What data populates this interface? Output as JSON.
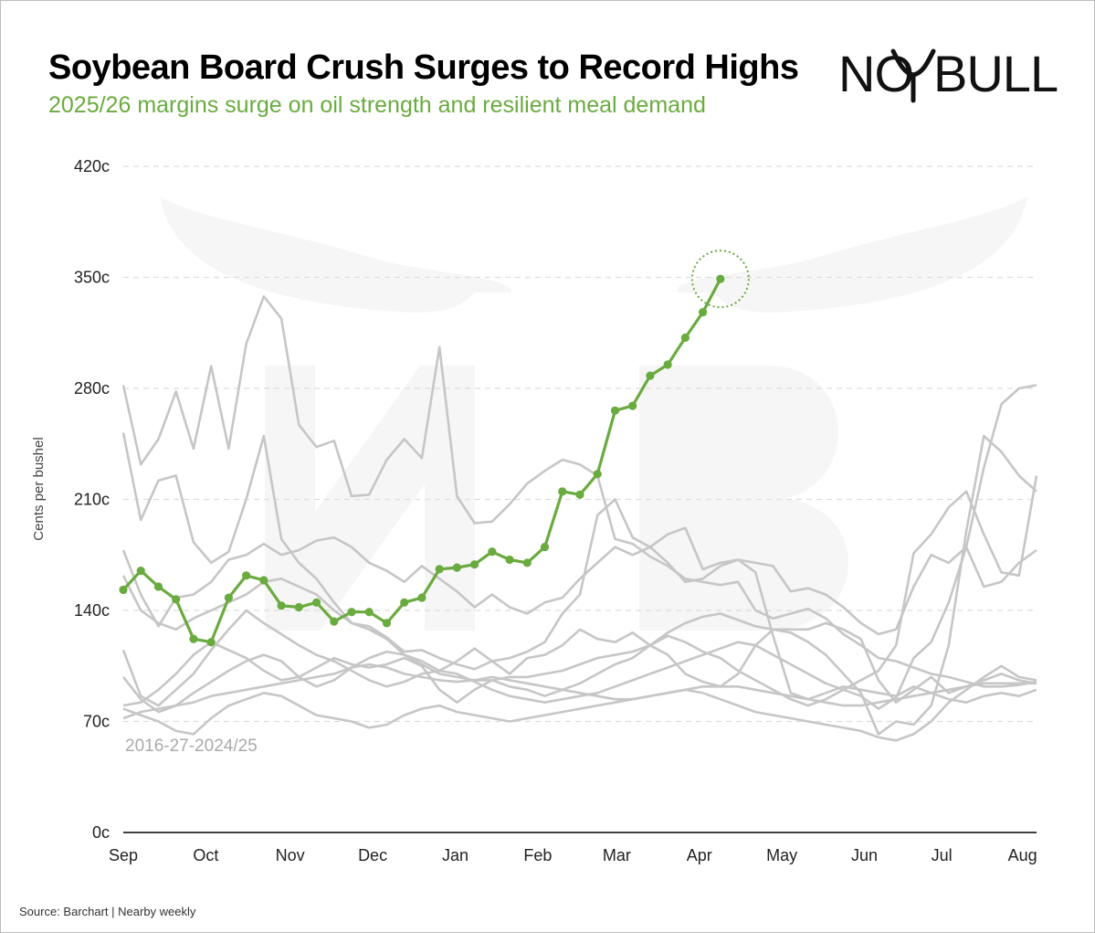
{
  "title": "Soybean Board Crush Surges to Record Highs",
  "subtitle": "2025/26 margins surge on oil strength and resilient meal demand",
  "source": "Source: Barchart | Nearby weekly",
  "logo": {
    "left": "NO",
    "right": "BULL"
  },
  "colors": {
    "highlight": "#6aab3f",
    "history": "#c6c6c6",
    "grid": "#dddddd",
    "axis": "#000000"
  },
  "chart_data": {
    "type": "line",
    "ylabel": "Cents per bushel",
    "ylim": [
      0,
      420
    ],
    "yticks": [
      0,
      70,
      140,
      210,
      280,
      350,
      420
    ],
    "ytick_labels": [
      "0c",
      "70c",
      "140c",
      "210c",
      "280c",
      "350c",
      "420c"
    ],
    "x_week_range": [
      0,
      52
    ],
    "xticks": [
      {
        "label": "Sep",
        "week": 0
      },
      {
        "label": "Oct",
        "week": 4.7
      },
      {
        "label": "Nov",
        "week": 9.5
      },
      {
        "label": "Dec",
        "week": 14.2
      },
      {
        "label": "Jan",
        "week": 18.9
      },
      {
        "label": "Feb",
        "week": 23.6
      },
      {
        "label": "Mar",
        "week": 28.1
      },
      {
        "label": "Apr",
        "week": 32.8
      },
      {
        "label": "May",
        "week": 37.5
      },
      {
        "label": "Jun",
        "week": 42.2
      },
      {
        "label": "Jul",
        "week": 46.6
      },
      {
        "label": "Aug",
        "week": 51.2
      }
    ],
    "grid": "horizontal dashed",
    "annotation": "2016-27-2024/25",
    "highlight_series": {
      "values": [
        153,
        165,
        155,
        147,
        122,
        120,
        148,
        162,
        159,
        143,
        142,
        145,
        133,
        139,
        139,
        132,
        145,
        148,
        166,
        167,
        169,
        177,
        172,
        170,
        180,
        215,
        213,
        226,
        266,
        269,
        288,
        295,
        312,
        328,
        349
      ],
      "marker_circle_on_last": true
    },
    "history_series": [
      {
        "values": [
          282,
          232,
          248,
          278,
          242,
          294,
          242,
          308,
          338,
          324,
          257,
          243,
          247,
          212,
          213,
          235,
          248,
          236,
          306,
          212,
          195,
          196,
          207,
          220,
          228,
          235,
          232,
          225,
          185,
          182,
          174,
          168,
          160,
          158,
          156,
          158,
          140,
          135,
          138,
          141,
          135,
          125,
          118,
          110,
          108,
          104,
          100,
          98,
          95,
          92,
          92,
          93,
          95
        ]
      },
      {
        "values": [
          252,
          197,
          222,
          225,
          183,
          170,
          177,
          210,
          250,
          185,
          170,
          160,
          145,
          132,
          130,
          123,
          114,
          115,
          110,
          106,
          103,
          108,
          110,
          114,
          120,
          138,
          150,
          200,
          210,
          186,
          180,
          188,
          192,
          166,
          170,
          172,
          164,
          124,
          88,
          84,
          88,
          92,
          90,
          88,
          86,
          92,
          88,
          84,
          82,
          86,
          88,
          86,
          90
        ]
      },
      {
        "values": [
          178,
          150,
          130,
          148,
          150,
          158,
          172,
          175,
          182,
          175,
          178,
          184,
          186,
          180,
          170,
          165,
          158,
          168,
          160,
          152,
          142,
          150,
          142,
          138,
          145,
          148,
          160,
          170,
          180,
          175,
          180,
          170,
          158,
          160,
          168,
          172,
          170,
          168,
          152,
          154,
          150,
          142,
          132,
          125,
          128,
          155,
          175,
          170,
          180,
          155,
          158,
          170,
          178
        ]
      },
      {
        "values": [
          162,
          140,
          132,
          128,
          135,
          140,
          145,
          150,
          158,
          160,
          155,
          150,
          140,
          132,
          128,
          122,
          112,
          108,
          102,
          108,
          116,
          108,
          100,
          110,
          112,
          118,
          128,
          122,
          120,
          126,
          118,
          112,
          100,
          95,
          92,
          100,
          118,
          128,
          126,
          120,
          112,
          100,
          88,
          62,
          70,
          68,
          80,
          118,
          190,
          250,
          240,
          225,
          215
        ]
      },
      {
        "values": [
          115,
          86,
          80,
          90,
          100,
          115,
          128,
          140,
          132,
          125,
          118,
          112,
          108,
          102,
          96,
          92,
          95,
          100,
          102,
          100,
          95,
          90,
          86,
          84,
          82,
          84,
          86,
          88,
          92,
          96,
          100,
          104,
          108,
          112,
          116,
          120,
          118,
          112,
          106,
          100,
          94,
          90,
          86,
          78,
          85,
          110,
          120,
          145,
          180,
          230,
          270,
          280,
          282
        ]
      },
      {
        "values": [
          98,
          84,
          76,
          80,
          88,
          95,
          102,
          108,
          112,
          108,
          98,
          92,
          96,
          104,
          110,
          114,
          112,
          106,
          100,
          98,
          96,
          96,
          98,
          98,
          100,
          102,
          106,
          110,
          112,
          114,
          118,
          124,
          120,
          114,
          110,
          102,
          96,
          90,
          84,
          80,
          84,
          90,
          96,
          102,
          118,
          176,
          188,
          205,
          215,
          188,
          164,
          162,
          225
        ]
      },
      {
        "values": [
          80,
          82,
          90,
          100,
          112,
          120,
          115,
          110,
          102,
          96,
          98,
          104,
          110,
          106,
          104,
          106,
          110,
          105,
          90,
          82,
          90,
          96,
          92,
          90,
          86,
          90,
          94,
          100,
          106,
          110,
          118,
          126,
          132,
          136,
          138,
          134,
          130,
          128,
          128,
          128,
          132,
          128,
          122,
          96,
          82,
          90,
          98,
          88,
          92,
          96,
          100,
          96,
          94
        ]
      },
      {
        "values": [
          78,
          74,
          70,
          64,
          62,
          72,
          80,
          84,
          88,
          86,
          80,
          74,
          72,
          70,
          66,
          68,
          74,
          78,
          80,
          76,
          74,
          72,
          70,
          72,
          74,
          76,
          78,
          80,
          82,
          84,
          86,
          88,
          90,
          88,
          84,
          80,
          76,
          74,
          72,
          70,
          68,
          66,
          64,
          60,
          58,
          62,
          70,
          82,
          90,
          98,
          105,
          98,
          96
        ]
      },
      {
        "values": [
          72,
          76,
          78,
          80,
          82,
          86,
          88,
          90,
          92,
          94,
          96,
          98,
          100,
          104,
          106,
          104,
          100,
          98,
          96,
          95,
          96,
          98,
          96,
          94,
          92,
          90,
          88,
          86,
          84,
          84,
          86,
          88,
          90,
          92,
          92,
          92,
          90,
          88,
          86,
          84,
          82,
          80,
          80,
          82,
          84,
          86,
          88,
          90,
          92,
          94,
          94,
          94,
          94
        ]
      }
    ]
  }
}
